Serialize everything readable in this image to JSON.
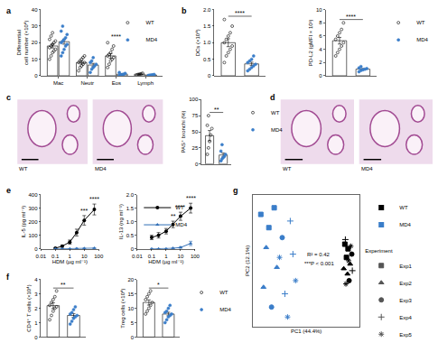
{
  "chart_data": [
    {
      "panel": "a",
      "type": "bar",
      "categories": [
        "Mac",
        "Neutr",
        "Eos",
        "Lymph"
      ],
      "ylabel": "Differential\ncell number (×10⁴)",
      "ylim": [
        0,
        40
      ],
      "yticks": [
        0,
        10,
        20,
        30,
        40
      ],
      "grid": false,
      "legend": "top right",
      "series": [
        {
          "name": "WT",
          "color": "#000000",
          "marker": "circle-open",
          "values": [
            18,
            8,
            12,
            1
          ],
          "errors": [
            1.2,
            0.9,
            1.4,
            0.2
          ],
          "points": [
            [
              10,
              12,
              14,
              15,
              16,
              17,
              18,
              19,
              20,
              21,
              22,
              24,
              26
            ],
            [
              3,
              5,
              6,
              7,
              8,
              8,
              9,
              10,
              11,
              12
            ],
            [
              5,
              7,
              9,
              10,
              11,
              12,
              13,
              14,
              16,
              18,
              20
            ],
            [
              0.5,
              0.8,
              1,
              1.2,
              1.5
            ]
          ]
        },
        {
          "name": "MD4",
          "color": "#3a7dc9",
          "marker": "circle",
          "values": [
            20.6,
            6.5,
            1,
            0.5
          ],
          "errors": [
            1.5,
            1,
            0.3,
            0.1
          ],
          "points": [
            [
              12,
              14,
              16,
              18,
              19,
              20,
              21,
              22,
              23,
              25,
              27,
              30
            ],
            [
              2,
              4,
              5,
              6,
              7,
              8,
              9,
              11
            ],
            [
              0.2,
              0.5,
              0.8,
              1,
              1.5,
              2
            ],
            [
              0.2,
              0.4,
              0.5,
              0.6,
              0.8
            ]
          ]
        }
      ],
      "annotations": [
        {
          "category": "Eos",
          "text": "****"
        }
      ]
    },
    {
      "panel": "b",
      "type": "bar",
      "ylabel": "DCs (×10⁴)",
      "ylim": [
        0,
        2
      ],
      "yticks": [
        0,
        0.5,
        {
          "value": 1,
          "label": "1.0"
        },
        1.5,
        {
          "value": 2,
          "label": "2.0"
        }
      ],
      "grid": false,
      "tick_labels": "y",
      "series": [
        {
          "name": "WT",
          "color": "#000000",
          "marker": "circle-open",
          "values": [
            1.0
          ],
          "errors": [
            0.12
          ],
          "points": [
            [
              0.4,
              0.6,
              0.7,
              0.8,
              0.9,
              1.0,
              1.1,
              1.2,
              1.3,
              1.5,
              1.7
            ]
          ]
        },
        {
          "name": "MD4",
          "color": "#3a7dc9",
          "marker": "circle",
          "values": [
            0.36
          ],
          "errors": [
            0.05
          ],
          "points": [
            [
              0.15,
              0.2,
              0.25,
              0.3,
              0.35,
              0.4,
              0.45,
              0.5,
              0.6
            ]
          ]
        }
      ],
      "annotations": [
        {
          "text": "****"
        }
      ]
    },
    {
      "type": "bar",
      "ylabel": "PD-L2 (gMFI × 10³)",
      "ylim": [
        0,
        10
      ],
      "yticks": [
        0,
        2,
        4,
        6,
        8,
        10
      ],
      "grid": false,
      "tick_labels": "y",
      "legend": "right",
      "series": [
        {
          "name": "WT",
          "color": "#000000",
          "marker": "circle-open",
          "values": [
            5.3
          ],
          "errors": [
            0.5
          ],
          "points": [
            [
              3,
              3.5,
              4,
              4.5,
              5,
              5.5,
              6,
              6.5,
              7,
              8
            ]
          ]
        },
        {
          "name": "MD4",
          "color": "#3a7dc9",
          "marker": "circle",
          "values": [
            1.0
          ],
          "errors": [
            0.1
          ],
          "points": [
            [
              0.6,
              0.8,
              0.9,
              1,
              1.1,
              1.2,
              1.4
            ]
          ]
        }
      ],
      "annotations": [
        {
          "text": "****"
        }
      ]
    },
    {
      "panel": "c",
      "type": "image",
      "labels": [
        "WT",
        "MD4"
      ]
    },
    {
      "type": "bar",
      "ylabel": "PAS⁺ bronchi (%)",
      "ylim": [
        0,
        100
      ],
      "yticks": [
        0,
        25,
        50,
        75,
        100
      ],
      "grid": false,
      "tick_labels": "y",
      "legend": "right",
      "series": [
        {
          "name": "WT",
          "color": "#000000",
          "marker": "circle-open",
          "values": [
            44
          ],
          "errors": [
            8
          ],
          "points": [
            [
              15,
              25,
              35,
              45,
              55,
              60,
              75
            ]
          ]
        },
        {
          "name": "MD4",
          "color": "#3a7dc9",
          "marker": "circle",
          "values": [
            14
          ],
          "errors": [
            3
          ],
          "points": [
            [
              5,
              8,
              10,
              12,
              15,
              20,
              30
            ]
          ]
        }
      ],
      "annotations": [
        {
          "text": "**"
        }
      ]
    },
    {
      "panel": "d",
      "type": "image",
      "labels": [
        "WT",
        "MD4"
      ]
    },
    {
      "panel": "e",
      "type": "line",
      "log": "x",
      "xlabel": "HDM (µg ml⁻¹)",
      "ylabel": "IL-5 (pg ml⁻¹)",
      "x": [
        0.1,
        0.3,
        1,
        3,
        10,
        50
      ],
      "xlim": [
        0.01,
        100
      ],
      "xticks": [
        0.01,
        0.1,
        1,
        10,
        100
      ],
      "ylim": [
        0,
        400
      ],
      "yticks": [
        0,
        100,
        200,
        300,
        400
      ],
      "grid": false,
      "series": [
        {
          "name": "WT",
          "color": "#000000",
          "marker": "circle",
          "values": [
            5,
            20,
            50,
            120,
            210,
            290
          ],
          "errors": [
            3,
            8,
            15,
            25,
            35,
            40
          ]
        },
        {
          "name": "MD4",
          "color": "#2f6db5",
          "marker": "triangle-up",
          "values": [
            0,
            0,
            0,
            2,
            3,
            5
          ],
          "errors": [
            0,
            0,
            0,
            1,
            1,
            2
          ]
        }
      ],
      "annotations": [
        {
          "x": 10,
          "text": "***"
        },
        {
          "x": 50,
          "text": "****"
        }
      ]
    },
    {
      "type": "line",
      "log": "x",
      "xlabel": "HDM (µg ml⁻¹)",
      "ylabel": "IL-13 (ng ml⁻¹)",
      "x": [
        0.1,
        0.3,
        1,
        3,
        10,
        50
      ],
      "xlim": [
        0.01,
        100
      ],
      "xticks": [
        0.01,
        0.1,
        1,
        10,
        100
      ],
      "ylim": [
        0,
        2
      ],
      "yticks": [
        0,
        0.5,
        {
          "value": 1,
          "label": "1.0"
        },
        1.5,
        {
          "value": 2,
          "label": "2.0"
        }
      ],
      "grid": false,
      "legend": "top left",
      "series": [
        {
          "name": "WT",
          "color": "#000000",
          "marker": "circle",
          "values": [
            0.42,
            0.5,
            0.65,
            0.9,
            1.2,
            1.5
          ],
          "errors": [
            0.08,
            0.1,
            0.1,
            0.12,
            0.15,
            0.18
          ]
        },
        {
          "name": "MD4",
          "color": "#2f6db5",
          "marker": "triangle-up",
          "values": [
            0,
            0,
            0,
            0.02,
            0.05,
            0.2
          ],
          "errors": [
            0,
            0,
            0,
            0.01,
            0.03,
            0.08
          ]
        }
      ],
      "annotations": [
        {
          "x": 3,
          "text": "**"
        },
        {
          "x": 10,
          "text": "****"
        },
        {
          "x": 50,
          "text": "****"
        }
      ]
    },
    {
      "panel": "f",
      "type": "bar",
      "ylabel": "CD4⁺ T cells (×10⁴)",
      "ylim": [
        0,
        4
      ],
      "yticks": [
        0,
        1,
        2,
        3,
        4
      ],
      "grid": false,
      "tick_labels": "y",
      "series": [
        {
          "name": "WT",
          "color": "#000000",
          "marker": "circle-open",
          "values": [
            2.18
          ],
          "errors": [
            0.2
          ],
          "points": [
            [
              1.2,
              1.5,
              1.8,
              2,
              2.1,
              2.2,
              2.4,
              2.6,
              2.8,
              3.2
            ]
          ]
        },
        {
          "name": "MD4",
          "color": "#3a7dc9",
          "marker": "circle",
          "values": [
            1.5
          ],
          "errors": [
            0.12
          ],
          "points": [
            [
              0.9,
              1.1,
              1.3,
              1.4,
              1.5,
              1.6,
              1.7,
              1.9,
              2.1
            ]
          ]
        }
      ],
      "annotations": [
        {
          "text": "**"
        }
      ]
    },
    {
      "type": "bar",
      "ylabel": "Treg cells (×10⁴)",
      "ylim": [
        0,
        20
      ],
      "yticks": [
        0,
        5,
        10,
        15,
        20
      ],
      "grid": false,
      "tick_labels": "y",
      "legend": "right",
      "series": [
        {
          "name": "WT",
          "color": "#000000",
          "marker": "circle-open",
          "values": [
            12
          ],
          "errors": [
            0.9
          ],
          "points": [
            [
              8,
              9,
              10,
              11,
              12,
              13,
              14,
              15,
              16
            ]
          ]
        },
        {
          "name": "MD4",
          "color": "#3a7dc9",
          "marker": "circle",
          "values": [
            8
          ],
          "errors": [
            0.6
          ],
          "points": [
            [
              5,
              6,
              7,
              7.5,
              8,
              8.5,
              9,
              10,
              11
            ]
          ]
        }
      ],
      "annotations": [
        {
          "text": "*"
        }
      ]
    },
    {
      "panel": "g",
      "type": "scatter",
      "xlabel": "PC1 (44.4%)",
      "ylabel": "PC2 (12.1%)",
      "xlim": [
        -1,
        1
      ],
      "ylim": [
        -1,
        1
      ],
      "grid": false,
      "tick_labels": false,
      "legend": "right",
      "legend_title": "Experiment",
      "groups": [
        {
          "name": "WT",
          "color": "#000000"
        },
        {
          "name": "MD4",
          "color": "#3a7dc9"
        }
      ],
      "experiments": [
        {
          "name": "Exp1",
          "marker": "square"
        },
        {
          "name": "Exp2",
          "marker": "triangle-up"
        },
        {
          "name": "Exp3",
          "marker": "circle"
        },
        {
          "name": "Exp4",
          "marker": "cross-thin-open"
        },
        {
          "name": "Exp5",
          "marker": "asterisk-open"
        }
      ],
      "points": [
        {
          "x": 0.72,
          "y": 0.25,
          "group": "WT",
          "experiment": "Exp1"
        },
        {
          "x": 0.78,
          "y": 0.18,
          "group": "WT",
          "experiment": "Exp1"
        },
        {
          "x": 0.75,
          "y": 0.05,
          "group": "WT",
          "experiment": "Exp1"
        },
        {
          "x": 0.82,
          "y": -0.05,
          "group": "WT",
          "experiment": "Exp2"
        },
        {
          "x": 0.7,
          "y": -0.12,
          "group": "WT",
          "experiment": "Exp2"
        },
        {
          "x": 0.77,
          "y": -0.2,
          "group": "WT",
          "experiment": "Exp2"
        },
        {
          "x": 0.85,
          "y": 0.1,
          "group": "WT",
          "experiment": "Exp3"
        },
        {
          "x": 0.8,
          "y": -0.3,
          "group": "WT",
          "experiment": "Exp3"
        },
        {
          "x": 0.73,
          "y": 0.32,
          "group": "WT",
          "experiment": "Exp4"
        },
        {
          "x": 0.86,
          "y": -0.15,
          "group": "WT",
          "experiment": "Exp4"
        },
        {
          "x": 0.79,
          "y": 0.0,
          "group": "WT",
          "experiment": "Exp5"
        },
        {
          "x": 0.74,
          "y": -0.35,
          "group": "WT",
          "experiment": "Exp5"
        },
        {
          "x": 0.83,
          "y": 0.22,
          "group": "WT",
          "experiment": "Exp5"
        },
        {
          "x": -0.85,
          "y": 0.7,
          "group": "MD4",
          "experiment": "Exp1"
        },
        {
          "x": -0.7,
          "y": 0.5,
          "group": "MD4",
          "experiment": "Exp1"
        },
        {
          "x": -0.6,
          "y": 0.8,
          "group": "MD4",
          "experiment": "Exp1"
        },
        {
          "x": -0.75,
          "y": 0.2,
          "group": "MD4",
          "experiment": "Exp2"
        },
        {
          "x": -0.55,
          "y": -0.1,
          "group": "MD4",
          "experiment": "Exp2"
        },
        {
          "x": -0.8,
          "y": -0.4,
          "group": "MD4",
          "experiment": "Exp2"
        },
        {
          "x": -0.45,
          "y": 0.35,
          "group": "MD4",
          "experiment": "Exp3"
        },
        {
          "x": -0.65,
          "y": -0.7,
          "group": "MD4",
          "experiment": "Exp3"
        },
        {
          "x": -0.3,
          "y": 0.6,
          "group": "MD4",
          "experiment": "Exp4"
        },
        {
          "x": -0.25,
          "y": 0.1,
          "group": "MD4",
          "experiment": "Exp4"
        },
        {
          "x": -0.4,
          "y": -0.5,
          "group": "MD4",
          "experiment": "Exp4"
        },
        {
          "x": -0.5,
          "y": 0.05,
          "group": "MD4",
          "experiment": "Exp5"
        },
        {
          "x": -0.2,
          "y": -0.3,
          "group": "MD4",
          "experiment": "Exp5"
        },
        {
          "x": -0.35,
          "y": -0.85,
          "group": "MD4",
          "experiment": "Exp5"
        }
      ],
      "annotations": [
        "R² = 0.42",
        "***P < 0.001"
      ]
    }
  ]
}
